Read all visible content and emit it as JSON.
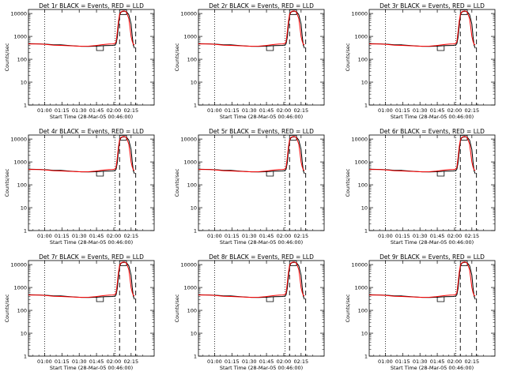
{
  "colors": {
    "events": "#000000",
    "lld": "#ff0000",
    "background": "#ffffff"
  },
  "chart_data": [
    {
      "type": "line",
      "title": "Det 1r BLACK = Events, RED = LLD",
      "xlabel": "Start Time (28-Mar-05 00:46:00)",
      "ylabel": "Counts/sec",
      "x_ticks": [
        "01:00",
        "01:15",
        "01:30",
        "01:45",
        "02:00",
        "02:15"
      ],
      "y_ticks": [
        "1",
        "10",
        "100",
        "1000",
        "10000"
      ],
      "y_scale": "log",
      "ylim": [
        1,
        15000
      ]
    },
    {
      "type": "line",
      "title": "Det 2r BLACK = Events, RED = LLD",
      "xlabel": "Start Time (28-Mar-05 00:46:00)",
      "ylabel": "Counts/sec",
      "x_ticks": [
        "01:00",
        "01:15",
        "01:30",
        "01:45",
        "02:00",
        "02:15"
      ],
      "y_ticks": [
        "1",
        "10",
        "100",
        "1000",
        "10000"
      ],
      "y_scale": "log",
      "ylim": [
        1,
        15000
      ]
    },
    {
      "type": "line",
      "title": "Det 3r BLACK = Events, RED = LLD",
      "xlabel": "Start Time (28-Mar-05 00:46:00)",
      "ylabel": "Counts/sec",
      "x_ticks": [
        "01:00",
        "01:15",
        "01:30",
        "01:45",
        "02:00",
        "02:15"
      ],
      "y_ticks": [
        "1",
        "10",
        "100",
        "1000",
        "10000"
      ],
      "y_scale": "log",
      "ylim": [
        1,
        15000
      ]
    },
    {
      "type": "line",
      "title": "Det 4r BLACK = Events, RED = LLD",
      "xlabel": "Start Time (28-Mar-05 00:46:00)",
      "ylabel": "Counts/sec",
      "x_ticks": [
        "01:00",
        "01:15",
        "01:30",
        "01:45",
        "02:00",
        "02:15"
      ],
      "y_ticks": [
        "1",
        "10",
        "100",
        "1000",
        "10000"
      ],
      "y_scale": "log",
      "ylim": [
        1,
        15000
      ]
    },
    {
      "type": "line",
      "title": "Det 5r BLACK = Events, RED = LLD",
      "xlabel": "Start Time (28-Mar-05 00:46:00)",
      "ylabel": "Counts/sec",
      "x_ticks": [
        "01:00",
        "01:15",
        "01:30",
        "01:45",
        "02:00",
        "02:15"
      ],
      "y_ticks": [
        "1",
        "10",
        "100",
        "1000",
        "10000"
      ],
      "y_scale": "log",
      "ylim": [
        1,
        15000
      ]
    },
    {
      "type": "line",
      "title": "Det 6r BLACK = Events, RED = LLD",
      "xlabel": "Start Time (28-Mar-05 00:46:00)",
      "ylabel": "Counts/sec",
      "x_ticks": [
        "01:00",
        "01:15",
        "01:30",
        "01:45",
        "02:00",
        "02:15"
      ],
      "y_ticks": [
        "1",
        "10",
        "100",
        "1000",
        "10000"
      ],
      "y_scale": "log",
      "ylim": [
        1,
        15000
      ]
    },
    {
      "type": "line",
      "title": "Det 7r BLACK = Events, RED = LLD",
      "xlabel": "Start Time (28-Mar-05 00:46:00)",
      "ylabel": "Counts/sec",
      "x_ticks": [
        "01:00",
        "01:15",
        "01:30",
        "01:45",
        "02:00",
        "02:15"
      ],
      "y_ticks": [
        "1",
        "10",
        "100",
        "1000",
        "10000"
      ],
      "y_scale": "log",
      "ylim": [
        1,
        15000
      ]
    },
    {
      "type": "line",
      "title": "Det 8r BLACK = Events, RED = LLD",
      "xlabel": "Start Time (28-Mar-05 00:46:00)",
      "ylabel": "Counts/sec",
      "x_ticks": [
        "01:00",
        "01:15",
        "01:30",
        "01:45",
        "02:00",
        "02:15"
      ],
      "y_ticks": [
        "1",
        "10",
        "100",
        "1000",
        "10000"
      ],
      "y_scale": "log",
      "ylim": [
        1,
        15000
      ]
    },
    {
      "type": "line",
      "title": "Det 9r BLACK = Events, RED = LLD",
      "xlabel": "Start Time (28-Mar-05 00:46:00)",
      "ylabel": "Counts/sec",
      "x_ticks": [
        "01:00",
        "01:15",
        "01:30",
        "01:45",
        "02:00",
        "02:15"
      ],
      "y_ticks": [
        "1",
        "10",
        "100",
        "1000",
        "10000"
      ],
      "y_scale": "log",
      "ylim": [
        1,
        15000
      ]
    }
  ]
}
